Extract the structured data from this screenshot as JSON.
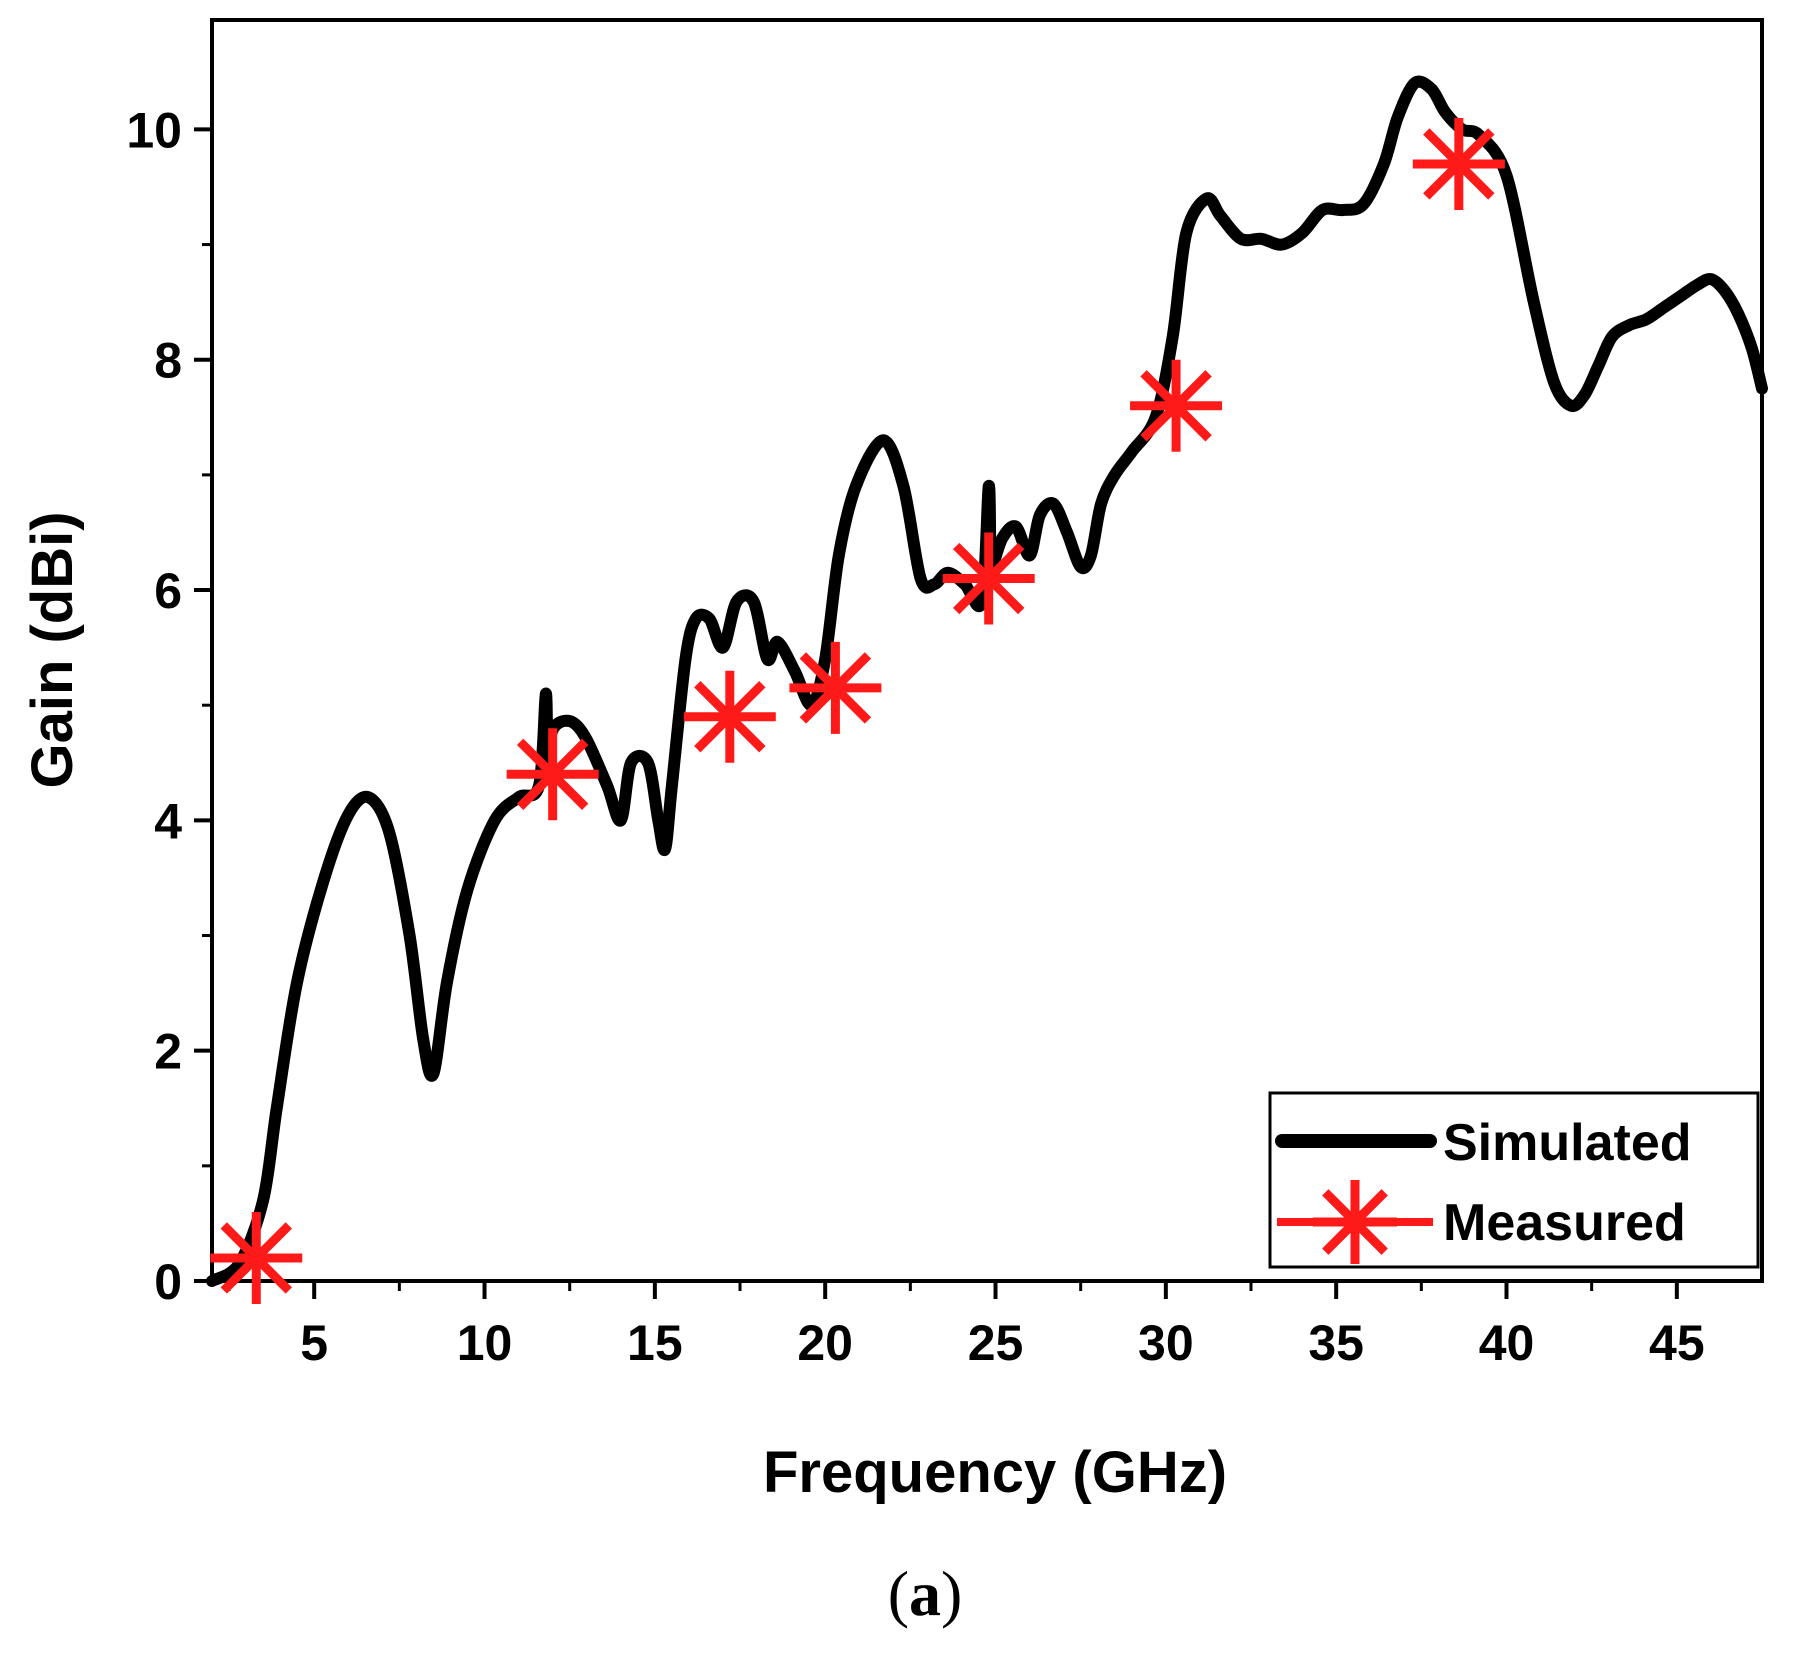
{
  "caption": {
    "open": "(",
    "letter": "a",
    "close": ")"
  },
  "colors": {
    "simulated": "#000000",
    "measured": "#ff1a1a",
    "axis": "#000000"
  },
  "chart_data": {
    "type": "line",
    "title": "",
    "xlabel": "Frequency (GHz)",
    "ylabel": "Gain (dBi)",
    "xlim": [
      2,
      47.5
    ],
    "ylim": [
      0,
      10.95
    ],
    "xticks": [
      5,
      10,
      15,
      20,
      25,
      30,
      35,
      40,
      45
    ],
    "yticks": [
      0,
      2,
      4,
      6,
      8,
      10
    ],
    "grid": false,
    "legend_position": "bottom-right",
    "series": [
      {
        "name": "Simulated",
        "style": "line",
        "x": [
          2.0,
          2.8,
          3.5,
          3.9,
          4.5,
          5.3,
          6.0,
          6.6,
          7.2,
          7.8,
          8.2,
          8.5,
          8.9,
          9.5,
          10.3,
          11.0,
          11.6,
          11.8,
          11.85,
          11.95,
          12.2,
          12.6,
          13.0,
          13.6,
          14.0,
          14.3,
          14.8,
          15.1,
          15.3,
          15.5,
          15.9,
          16.2,
          16.6,
          17.0,
          17.4,
          17.9,
          18.3,
          18.6,
          19.1,
          19.6,
          20.0,
          20.4,
          20.9,
          21.7,
          22.3,
          22.8,
          23.2,
          23.6,
          24.1,
          24.6,
          24.8,
          24.85,
          24.9,
          25.2,
          25.6,
          26.0,
          26.3,
          26.7,
          27.1,
          27.5,
          27.8,
          28.1,
          28.5,
          29.0,
          29.7,
          30.2,
          30.6,
          31.2,
          31.6,
          32.2,
          32.8,
          33.4,
          34.0,
          34.6,
          35.2,
          35.8,
          36.4,
          36.8,
          37.3,
          37.8,
          38.2,
          38.7,
          39.2,
          40.0,
          40.8,
          41.4,
          41.9,
          42.3,
          42.7,
          43.1,
          43.6,
          44.1,
          44.6,
          45.1,
          45.6,
          46.0,
          46.4,
          46.8,
          47.2,
          47.5
        ],
        "y": [
          0.0,
          0.15,
          0.7,
          1.5,
          2.6,
          3.5,
          4.05,
          4.2,
          3.9,
          3.0,
          2.1,
          1.8,
          2.6,
          3.4,
          4.0,
          4.2,
          4.3,
          5.1,
          4.5,
          4.75,
          4.85,
          4.85,
          4.7,
          4.3,
          4.0,
          4.5,
          4.5,
          4.0,
          3.75,
          4.3,
          5.4,
          5.75,
          5.75,
          5.5,
          5.9,
          5.9,
          5.4,
          5.55,
          5.3,
          5.0,
          5.4,
          6.3,
          6.9,
          7.3,
          6.9,
          6.1,
          6.05,
          6.15,
          6.05,
          5.9,
          6.9,
          6.3,
          6.2,
          6.45,
          6.55,
          6.3,
          6.65,
          6.75,
          6.5,
          6.2,
          6.3,
          6.75,
          7.0,
          7.2,
          7.5,
          8.2,
          9.1,
          9.4,
          9.25,
          9.05,
          9.05,
          9.0,
          9.1,
          9.3,
          9.3,
          9.35,
          9.7,
          10.1,
          10.4,
          10.35,
          10.15,
          10.0,
          9.95,
          9.6,
          8.5,
          7.8,
          7.6,
          7.7,
          7.95,
          8.2,
          8.3,
          8.35,
          8.45,
          8.55,
          8.65,
          8.7,
          8.6,
          8.4,
          8.1,
          7.75
        ]
      },
      {
        "name": "Measured",
        "style": "markers",
        "marker": "asterisk",
        "x": [
          3.3,
          12.0,
          17.2,
          20.3,
          24.8,
          30.3,
          38.6
        ],
        "y": [
          0.2,
          4.4,
          4.9,
          5.15,
          6.1,
          7.6,
          9.7
        ]
      }
    ]
  }
}
